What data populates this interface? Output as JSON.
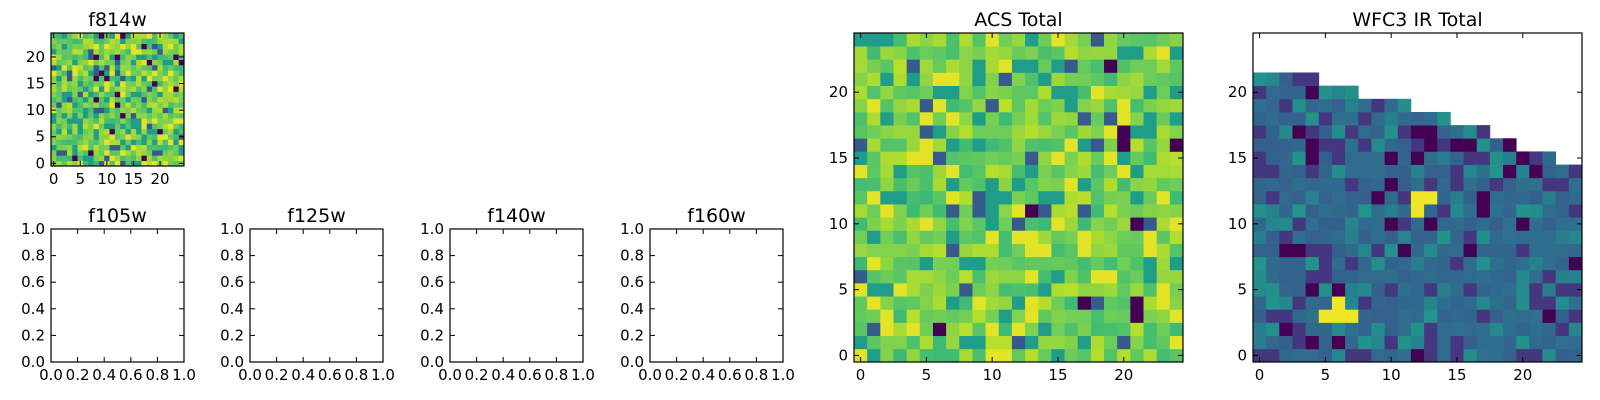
{
  "chart_data": [
    {
      "id": "f814w",
      "type": "heatmap",
      "title": "f814w",
      "grid": [
        25,
        25
      ],
      "style": "acs",
      "seed": 11,
      "xlim": [
        -0.5,
        24.5
      ],
      "ylim": [
        -0.5,
        24.5
      ],
      "xticks": [
        0,
        5,
        10,
        15,
        20
      ],
      "yticks": [
        0,
        5,
        10,
        15,
        20
      ],
      "xticklabels": [
        "0",
        "5",
        "10",
        "15",
        "20"
      ],
      "yticklabels": [
        "0",
        "5",
        "10",
        "15",
        "20"
      ]
    },
    {
      "id": "f105w",
      "type": "empty",
      "title": "f105w",
      "xlim": [
        0,
        1
      ],
      "ylim": [
        0,
        1
      ],
      "xticks": [
        0,
        0.2,
        0.4,
        0.6,
        0.8,
        1.0
      ],
      "yticks": [
        0,
        0.2,
        0.4,
        0.6,
        0.8,
        1.0
      ],
      "xticklabels": [
        "0.0",
        "0.2",
        "0.4",
        "0.6",
        "0.8",
        "1.0"
      ],
      "yticklabels": [
        "0.0",
        "0.2",
        "0.4",
        "0.6",
        "0.8",
        "1.0"
      ]
    },
    {
      "id": "f125w",
      "type": "empty",
      "title": "f125w",
      "xlim": [
        0,
        1
      ],
      "ylim": [
        0,
        1
      ],
      "xticks": [
        0,
        0.2,
        0.4,
        0.6,
        0.8,
        1.0
      ],
      "yticks": [
        0,
        0.2,
        0.4,
        0.6,
        0.8,
        1.0
      ],
      "xticklabels": [
        "0.0",
        "0.2",
        "0.4",
        "0.6",
        "0.8",
        "1.0"
      ],
      "yticklabels": [
        "0.0",
        "0.2",
        "0.4",
        "0.6",
        "0.8",
        "1.0"
      ]
    },
    {
      "id": "f140w",
      "type": "empty",
      "title": "f140w",
      "xlim": [
        0,
        1
      ],
      "ylim": [
        0,
        1
      ],
      "xticks": [
        0,
        0.2,
        0.4,
        0.6,
        0.8,
        1.0
      ],
      "yticks": [
        0,
        0.2,
        0.4,
        0.6,
        0.8,
        1.0
      ],
      "xticklabels": [
        "0.0",
        "0.2",
        "0.4",
        "0.6",
        "0.8",
        "1.0"
      ],
      "yticklabels": [
        "0.0",
        "0.2",
        "0.4",
        "0.6",
        "0.8",
        "1.0"
      ]
    },
    {
      "id": "f160w",
      "type": "empty",
      "title": "f160w",
      "xlim": [
        0,
        1
      ],
      "ylim": [
        0,
        1
      ],
      "xticks": [
        0,
        0.2,
        0.4,
        0.6,
        0.8,
        1.0
      ],
      "yticks": [
        0,
        0.2,
        0.4,
        0.6,
        0.8,
        1.0
      ],
      "xticklabels": [
        "0.0",
        "0.2",
        "0.4",
        "0.6",
        "0.8",
        "1.0"
      ],
      "yticklabels": [
        "0.0",
        "0.2",
        "0.4",
        "0.6",
        "0.8",
        "1.0"
      ]
    },
    {
      "id": "acs-total",
      "type": "heatmap",
      "title": "ACS Total",
      "grid": [
        25,
        25
      ],
      "style": "acs",
      "seed": 29,
      "xlim": [
        -0.5,
        24.5
      ],
      "ylim": [
        -0.5,
        24.5
      ],
      "xticks": [
        0,
        5,
        10,
        15,
        20
      ],
      "yticks": [
        0,
        5,
        10,
        15,
        20
      ],
      "xticklabels": [
        "0",
        "5",
        "10",
        "15",
        "20"
      ],
      "yticklabels": [
        "0",
        "5",
        "10",
        "15",
        "20"
      ]
    },
    {
      "id": "wfc3-ir-total",
      "type": "heatmap",
      "title": "WFC3 IR Total",
      "grid": [
        25,
        25
      ],
      "style": "wfc3",
      "seed": 53,
      "column_heights": [
        22,
        22,
        22,
        22,
        22,
        21,
        21,
        21,
        20,
        20,
        20,
        20,
        19,
        19,
        19,
        18,
        18,
        18,
        17,
        17,
        16,
        16,
        16,
        15,
        15
      ],
      "bright_pixels": [
        [
          5,
          3
        ],
        [
          6,
          3
        ],
        [
          7,
          3
        ],
        [
          6,
          4
        ],
        [
          12,
          12
        ],
        [
          13,
          12
        ],
        [
          12,
          11
        ]
      ],
      "xlim": [
        -0.5,
        24.5
      ],
      "ylim": [
        -0.5,
        24.5
      ],
      "xticks": [
        0,
        5,
        10,
        15,
        20
      ],
      "yticks": [
        0,
        5,
        10,
        15,
        20
      ],
      "xticklabels": [
        "0",
        "5",
        "10",
        "15",
        "20"
      ],
      "yticklabels": [
        "0",
        "5",
        "10",
        "15",
        "20"
      ]
    }
  ]
}
